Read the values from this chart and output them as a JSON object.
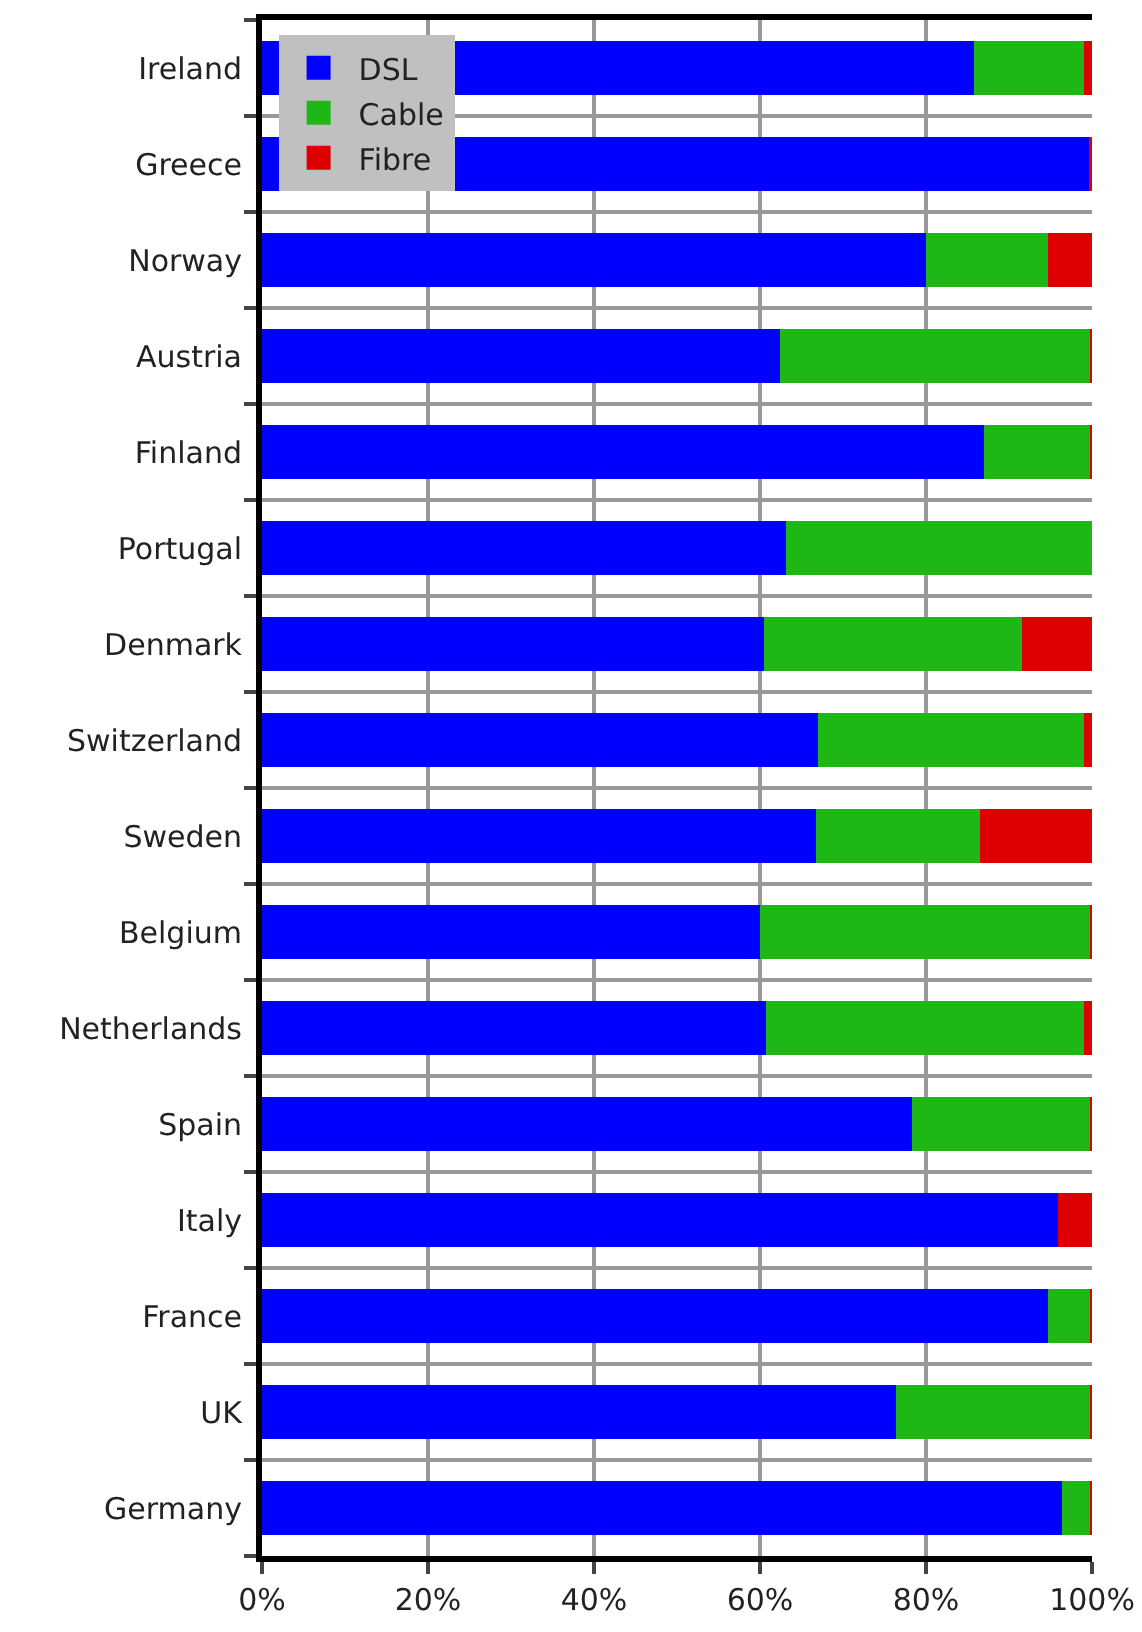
{
  "chart_data": {
    "type": "bar",
    "orientation": "horizontal",
    "stacked": true,
    "categories": [
      "Ireland",
      "Greece",
      "Norway",
      "Austria",
      "Finland",
      "Portugal",
      "Denmark",
      "Switzerland",
      "Sweden",
      "Belgium",
      "Netherlands",
      "Spain",
      "Italy",
      "France",
      "UK",
      "Germany"
    ],
    "series": [
      {
        "name": "DSL",
        "color": "#0000ff",
        "values": [
          85.8,
          99.6,
          80.0,
          62.4,
          87.0,
          63.1,
          60.5,
          67.0,
          66.7,
          60.0,
          60.7,
          78.3,
          95.9,
          94.7,
          76.4,
          96.4
        ]
      },
      {
        "name": "Cable",
        "color": "#1fb715",
        "values": [
          13.2,
          0,
          14.7,
          37.4,
          12.8,
          36.9,
          31.1,
          32.0,
          19.8,
          39.8,
          38.3,
          21.5,
          0,
          5.1,
          23.4,
          3.4
        ]
      },
      {
        "name": "Fibre",
        "color": "#de0000",
        "values": [
          1.0,
          0.4,
          5.3,
          0.2,
          0.2,
          0,
          8.4,
          1.0,
          13.5,
          0.2,
          1.0,
          0.2,
          4.1,
          0.2,
          0.2,
          0.2
        ]
      }
    ],
    "xlim": [
      0,
      100
    ],
    "xticks": [
      {
        "value": 0,
        "label": "0%"
      },
      {
        "value": 20,
        "label": "20%"
      },
      {
        "value": 40,
        "label": "40%"
      },
      {
        "value": 60,
        "label": "60%"
      },
      {
        "value": 80,
        "label": "80%"
      },
      {
        "value": 100,
        "label": "100%"
      }
    ],
    "grid": true,
    "legend": "top left"
  }
}
